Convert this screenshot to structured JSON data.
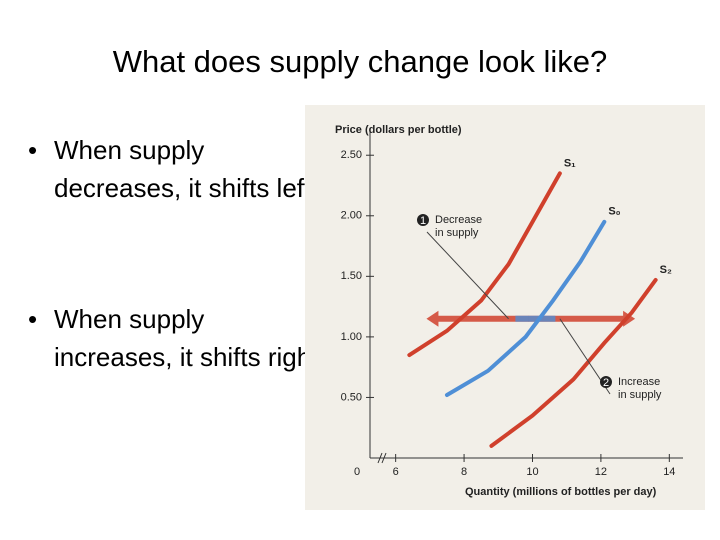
{
  "slide": {
    "title": "What does supply change look like?",
    "bullets": [
      "When supply decreases, it shifts left",
      "When supply increases, it shifts right"
    ]
  },
  "chart_data": {
    "type": "line",
    "y_label": "Price (dollars per bottle)",
    "x_label": "Quantity (millions of bottles per day)",
    "origin_label": "0",
    "xlim": [
      5.25,
      14.4
    ],
    "ylim": [
      0,
      2.7
    ],
    "xticks": [
      6,
      8,
      10,
      12,
      14
    ],
    "yticks": [
      {
        "value": 0.5,
        "label": "0.50"
      },
      {
        "value": 1,
        "label": "1.00"
      },
      {
        "value": 1.5,
        "label": "1.50"
      },
      {
        "value": 2,
        "label": "2.00"
      },
      {
        "value": 2.5,
        "label": "2.50"
      }
    ],
    "series": [
      {
        "name": "S₁",
        "color": "#d0402c",
        "x": [
          6.4,
          7.5,
          8.5,
          9.3,
          10,
          10.8
        ],
        "values": [
          0.85,
          1.05,
          1.3,
          1.6,
          1.95,
          2.35
        ]
      },
      {
        "name": "S₀",
        "color": "#4f8fd6",
        "x": [
          7.5,
          8.7,
          9.8,
          10.6,
          11.4,
          12.1
        ],
        "values": [
          0.52,
          0.72,
          1.0,
          1.3,
          1.62,
          1.95
        ]
      },
      {
        "name": "S₂",
        "color": "#d0402c",
        "x": [
          8.8,
          10,
          11.2,
          12.1,
          12.9,
          13.6
        ],
        "values": [
          0.1,
          0.35,
          0.65,
          0.95,
          1.2,
          1.47
        ]
      }
    ],
    "annotations": [
      {
        "number": "1",
        "text": "Decrease in supply"
      },
      {
        "number": "2",
        "text": "Increase in supply"
      }
    ]
  }
}
